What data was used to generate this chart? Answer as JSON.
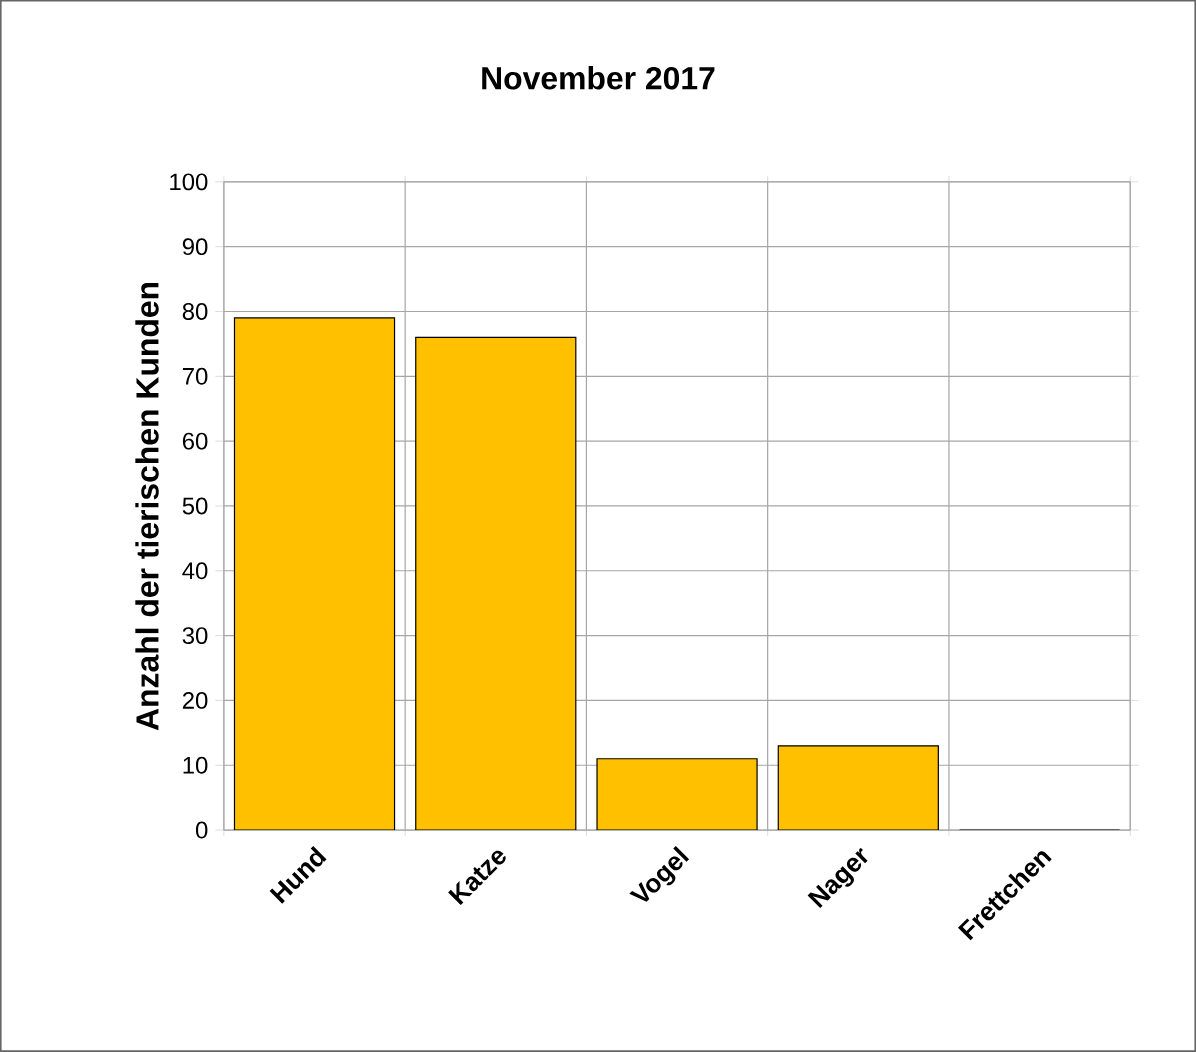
{
  "chart_data": {
    "type": "bar",
    "title": "November 2017",
    "ylabel": "Anzahl der tierischen Kunden",
    "categories": [
      "Hund",
      "Katze",
      "Vogel",
      "Nager",
      "Frettchen"
    ],
    "values": [
      79,
      76,
      11,
      13,
      0
    ],
    "color": "#ffc000",
    "ylim": [
      0,
      100
    ],
    "yticks": [
      0,
      10,
      20,
      30,
      40,
      50,
      60,
      70,
      80,
      90,
      100
    ],
    "grid": true
  }
}
